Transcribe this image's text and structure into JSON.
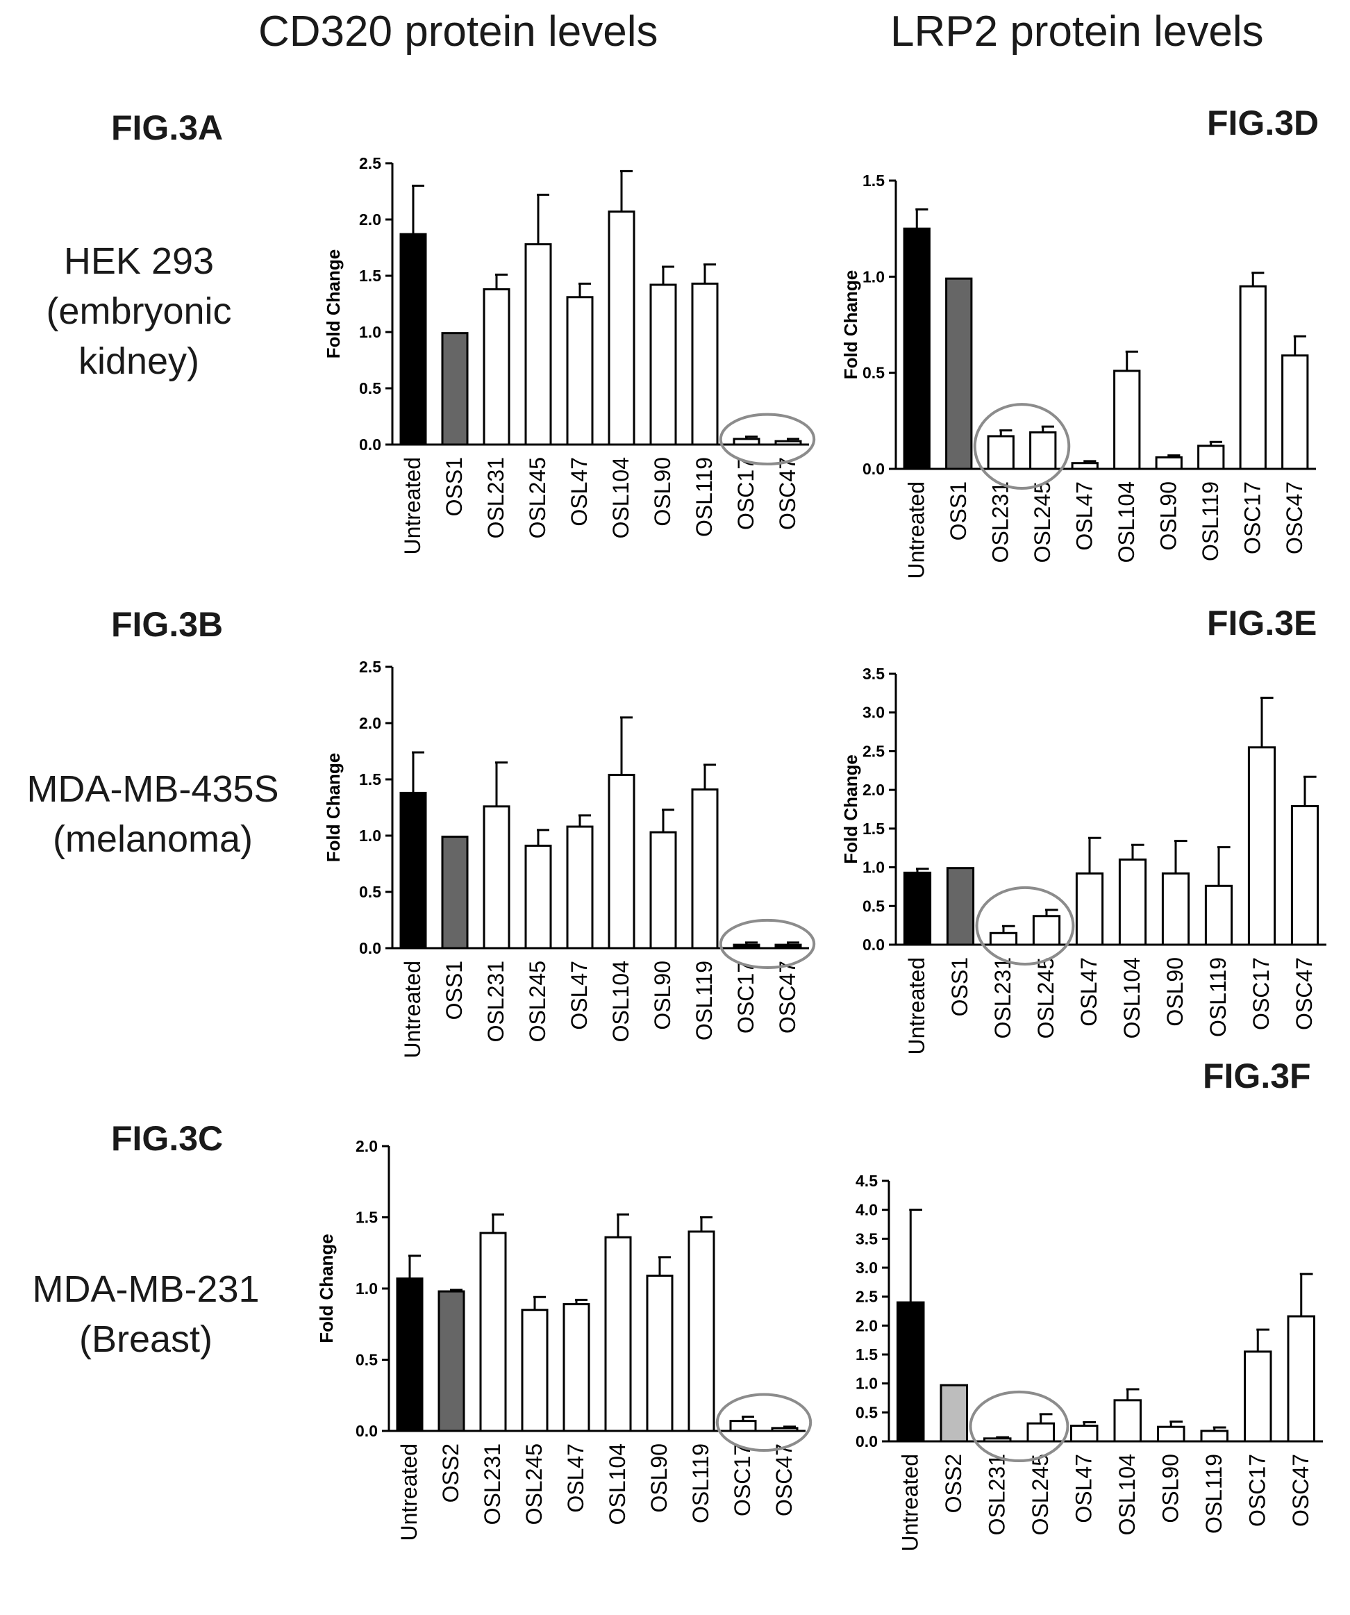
{
  "column_titles": [
    "CD320 protein levels",
    "LRP2 protein levels"
  ],
  "cell_lines": [
    {
      "line1": "HEK 293",
      "line2": "(embryonic",
      "line3": "kidney)"
    },
    {
      "line1": "MDA-MB-435S",
      "line2": "(melanoma)",
      "line3": ""
    },
    {
      "line1": "MDA-MB-231",
      "line2": "(Breast)",
      "line3": ""
    }
  ],
  "colors": {
    "black": "#000000",
    "dark_gray": "#666666",
    "light_gray": "#bdbdbd",
    "white": "#ffffff",
    "ellipse": "#8c8c8c"
  },
  "chart_data": [
    {
      "label": "FIG.3A",
      "type": "bar",
      "title": "",
      "xlabel": "",
      "ylabel": "Fold Change",
      "ylim": [
        0,
        2.5
      ],
      "yticks": [
        "0.0",
        "0.5",
        "1.0",
        "1.5",
        "2.0",
        "2.5"
      ],
      "tick_values": [
        0,
        0.5,
        1.0,
        1.5,
        2.0,
        2.5
      ],
      "categories": [
        "Untreated",
        "OSS1",
        "OSL231",
        "OSL245",
        "OSL47",
        "OSL104",
        "OSL90",
        "OSL119",
        "OSC17",
        "OSC47"
      ],
      "values": [
        1.87,
        0.99,
        1.38,
        1.78,
        1.31,
        2.07,
        1.42,
        1.43,
        0.05,
        0.03
      ],
      "errors": [
        0.43,
        0.0,
        0.13,
        0.44,
        0.12,
        0.36,
        0.16,
        0.17,
        0.02,
        0.02
      ],
      "fills": [
        "black",
        "dark_gray",
        "white",
        "white",
        "white",
        "white",
        "white",
        "white",
        "white",
        "white"
      ],
      "circled": [
        8,
        9
      ]
    },
    {
      "label": "FIG.3B",
      "type": "bar",
      "title": "",
      "xlabel": "",
      "ylabel": "Fold Change",
      "ylim": [
        0,
        2.5
      ],
      "yticks": [
        "0.0",
        "0.5",
        "1.0",
        "1.5",
        "2.0",
        "2.5"
      ],
      "tick_values": [
        0,
        0.5,
        1.0,
        1.5,
        2.0,
        2.5
      ],
      "categories": [
        "Untreated",
        "OSS1",
        "OSL231",
        "OSL245",
        "OSL47",
        "OSL104",
        "OSL90",
        "OSL119",
        "OSC17",
        "OSC47"
      ],
      "values": [
        1.38,
        0.99,
        1.26,
        0.91,
        1.08,
        1.54,
        1.03,
        1.41,
        0.03,
        0.03
      ],
      "errors": [
        0.36,
        0.0,
        0.39,
        0.14,
        0.1,
        0.51,
        0.2,
        0.22,
        0.02,
        0.02
      ],
      "fills": [
        "black",
        "dark_gray",
        "white",
        "white",
        "white",
        "white",
        "white",
        "white",
        "black",
        "black"
      ],
      "circled": [
        8,
        9
      ]
    },
    {
      "label": "FIG.3C",
      "type": "bar",
      "title": "",
      "xlabel": "",
      "ylabel": "Fold Change",
      "ylim": [
        0,
        2.0
      ],
      "yticks": [
        "0.0",
        "0.5",
        "1.0",
        "1.5",
        "2.0"
      ],
      "tick_values": [
        0,
        0.5,
        1.0,
        1.5,
        2.0
      ],
      "categories": [
        "Untreated",
        "OSS2",
        "OSL231",
        "OSL245",
        "OSL47",
        "OSL104",
        "OSL90",
        "OSL119",
        "OSC17",
        "OSC47"
      ],
      "values": [
        1.07,
        0.98,
        1.39,
        0.85,
        0.89,
        1.36,
        1.09,
        1.4,
        0.07,
        0.02
      ],
      "errors": [
        0.16,
        0.01,
        0.13,
        0.09,
        0.03,
        0.16,
        0.13,
        0.1,
        0.03,
        0.01
      ],
      "fills": [
        "black",
        "dark_gray",
        "white",
        "white",
        "white",
        "white",
        "white",
        "white",
        "white",
        "white"
      ],
      "circled": [
        8,
        9
      ]
    },
    {
      "label": "FIG.3D",
      "type": "bar",
      "title": "",
      "xlabel": "",
      "ylabel": "Fold Change",
      "ylim": [
        0,
        1.5
      ],
      "yticks": [
        "0.0",
        "0.5",
        "1.0",
        "1.5"
      ],
      "tick_values": [
        0,
        0.5,
        1.0,
        1.5
      ],
      "categories": [
        "Untreated",
        "OSS1",
        "OSL231",
        "OSL245",
        "OSL47",
        "OSL104",
        "OSL90",
        "OSL119",
        "OSC17",
        "OSC47"
      ],
      "values": [
        1.25,
        0.99,
        0.17,
        0.19,
        0.03,
        0.51,
        0.06,
        0.12,
        0.95,
        0.59
      ],
      "errors": [
        0.1,
        0.0,
        0.03,
        0.03,
        0.01,
        0.1,
        0.01,
        0.02,
        0.07,
        0.1
      ],
      "fills": [
        "black",
        "dark_gray",
        "white",
        "white",
        "white",
        "white",
        "white",
        "white",
        "white",
        "white"
      ],
      "circled": [
        2,
        3
      ]
    },
    {
      "label": "FIG.3E",
      "type": "bar",
      "title": "",
      "xlabel": "",
      "ylabel": "Fold Change",
      "ylim": [
        0,
        3.5
      ],
      "yticks": [
        "0.0",
        "0.5",
        "1.0",
        "1.5",
        "2.0",
        "2.5",
        "3.0",
        "3.5"
      ],
      "tick_values": [
        0,
        0.5,
        1.0,
        1.5,
        2.0,
        2.5,
        3.0,
        3.5
      ],
      "categories": [
        "Untreated",
        "OSS1",
        "OSL231",
        "OSL245",
        "OSL47",
        "OSL104",
        "OSL90",
        "OSL119",
        "OSC17",
        "OSC47"
      ],
      "values": [
        0.93,
        0.99,
        0.15,
        0.37,
        0.92,
        1.1,
        0.92,
        0.76,
        2.55,
        1.79
      ],
      "errors": [
        0.05,
        0.0,
        0.09,
        0.08,
        0.46,
        0.19,
        0.42,
        0.5,
        0.64,
        0.38
      ],
      "fills": [
        "black",
        "dark_gray",
        "white",
        "white",
        "white",
        "white",
        "white",
        "white",
        "white",
        "white"
      ],
      "circled": [
        2,
        3
      ]
    },
    {
      "label": "FIG.3F",
      "type": "bar",
      "title": "",
      "xlabel": "",
      "ylabel": "",
      "ylim": [
        0,
        4.5
      ],
      "yticks": [
        "0.0",
        "0.5",
        "1.0",
        "1.5",
        "2.0",
        "2.5",
        "3.0",
        "3.5",
        "4.0",
        "4.5"
      ],
      "tick_values": [
        0,
        0.5,
        1.0,
        1.5,
        2.0,
        2.5,
        3.0,
        3.5,
        4.0,
        4.5
      ],
      "categories": [
        "Untreated",
        "OSS2",
        "OSL231",
        "OSL245",
        "OSL47",
        "OSL104",
        "OSL90",
        "OSL119",
        "OSC17",
        "OSC47"
      ],
      "values": [
        2.4,
        0.97,
        0.05,
        0.31,
        0.27,
        0.71,
        0.25,
        0.18,
        1.55,
        2.16
      ],
      "errors": [
        1.6,
        0.0,
        0.02,
        0.16,
        0.06,
        0.19,
        0.09,
        0.06,
        0.38,
        0.73
      ],
      "fills": [
        "black",
        "light_gray",
        "white",
        "white",
        "white",
        "white",
        "white",
        "white",
        "white",
        "white"
      ],
      "circled": [
        2,
        3
      ]
    }
  ]
}
